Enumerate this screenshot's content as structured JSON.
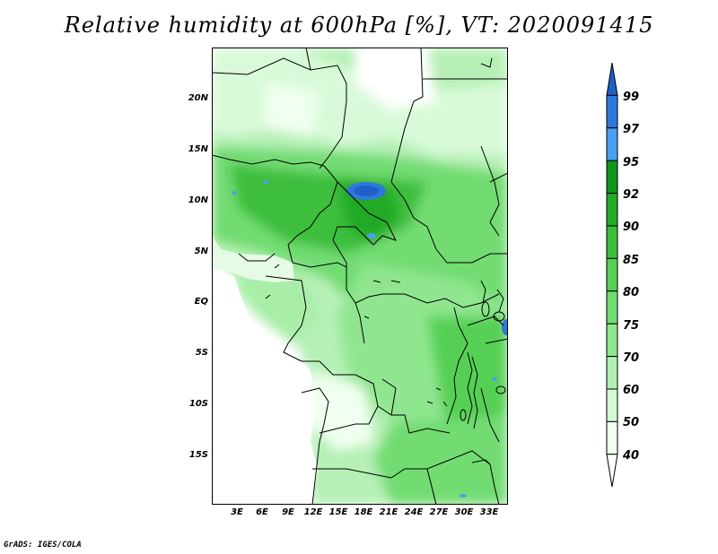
{
  "title": "Relative humidity at 600hPa [%], VT: 2020091415",
  "credit": "GrADS: IGES/COLA",
  "map": {
    "lat_labels": [
      "20N",
      "15N",
      "10N",
      "5N",
      "EQ",
      "5S",
      "10S",
      "15S"
    ],
    "lon_labels": [
      "3E",
      "6E",
      "9E",
      "12E",
      "15E",
      "18E",
      "21E",
      "24E",
      "27E",
      "30E",
      "33E"
    ]
  },
  "colorbar": {
    "levels": [
      "99",
      "97",
      "95",
      "92",
      "90",
      "85",
      "80",
      "75",
      "70",
      "60",
      "50",
      "40"
    ],
    "colors": [
      "#1e5fc8",
      "#2e78dc",
      "#4aa0f0",
      "#10961a",
      "#22aa28",
      "#3cbe3c",
      "#55d055",
      "#72dc72",
      "#8fe68f",
      "#b0f0b0",
      "#d4fad4",
      "#f0fff0",
      "#ffffff"
    ]
  }
}
